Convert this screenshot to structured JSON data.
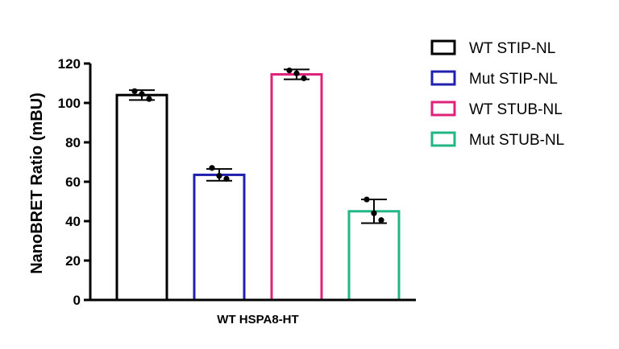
{
  "chart_data": {
    "type": "bar",
    "title": "",
    "xlabel": "WT HSPA8-HT",
    "ylabel": "NanoBRET Ratio (mBU)",
    "ylim": [
      0,
      120
    ],
    "yticks": [
      0,
      20,
      40,
      60,
      80,
      100,
      120
    ],
    "grid": false,
    "legend_position": "right",
    "categories": [
      "WT STIP-NL",
      "Mut STIP-NL",
      "WT STUB-NL",
      "Mut STUB-NL"
    ],
    "series": [
      {
        "name": "WT STIP-NL",
        "value": 104,
        "error": 2.5,
        "points": [
          106,
          102,
          104.5
        ],
        "color": "#000000"
      },
      {
        "name": "Mut STIP-NL",
        "value": 63.5,
        "error": 3,
        "points": [
          67,
          61.5,
          63
        ],
        "color": "#2020b0"
      },
      {
        "name": "WT STUB-NL",
        "value": 114.5,
        "error": 2.5,
        "points": [
          116.5,
          112.5,
          115
        ],
        "color": "#e0207a"
      },
      {
        "name": "Mut STUB-NL",
        "value": 45,
        "error": 6,
        "points": [
          51,
          40.5,
          44
        ],
        "color": "#22b585"
      }
    ]
  }
}
